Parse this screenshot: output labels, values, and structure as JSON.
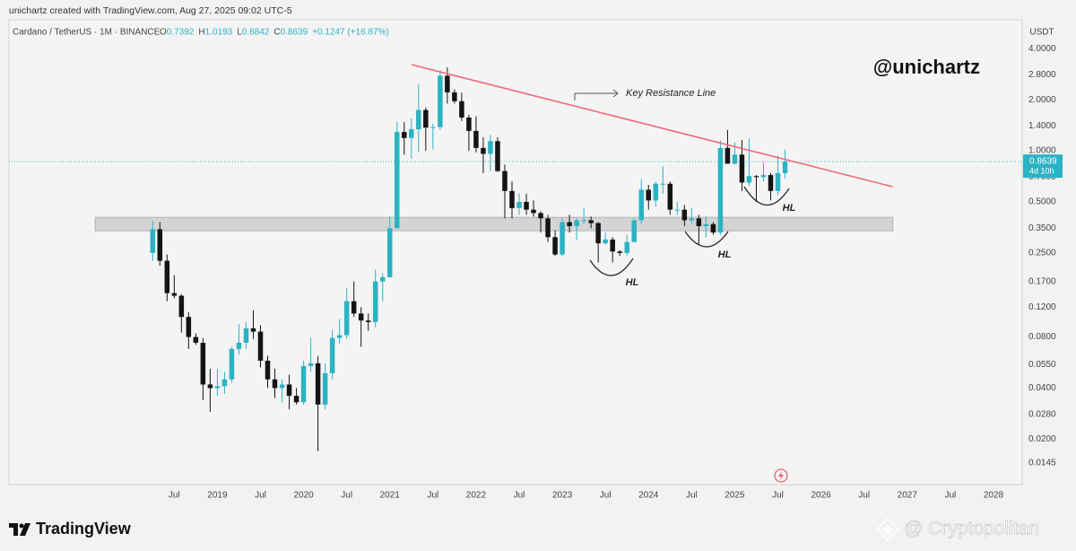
{
  "header": {
    "attribution": "unichartz created with TradingView.com, Aug 27, 2025 09:02 UTC-5"
  },
  "chart_data": {
    "type": "candlestick",
    "symbol": "Cardano / TetherUS · 1M · BINANCE",
    "legend": [
      {
        "key": "O",
        "value": "0.7392"
      },
      {
        "key": "H",
        "value": "1.0193"
      },
      {
        "key": "L",
        "value": "0.6842"
      },
      {
        "key": "C",
        "value": "0.8639"
      },
      {
        "key": "",
        "value": "+0.1247 (+16.87%)"
      }
    ],
    "y_unit": "USDT",
    "author_tag": "@unichartz",
    "up_color": "#2bb3c4",
    "down_color": "#141414",
    "log_scale": true,
    "grid": false,
    "x": [
      "2018-04",
      "2018-05",
      "2018-06",
      "2018-07",
      "2018-08",
      "2018-09",
      "2018-10",
      "2018-11",
      "2018-12",
      "2019-01",
      "2019-02",
      "2019-03",
      "2019-04",
      "2019-05",
      "2019-06",
      "2019-07",
      "2019-08",
      "2019-09",
      "2019-10",
      "2019-11",
      "2019-12",
      "2020-01",
      "2020-02",
      "2020-03",
      "2020-04",
      "2020-05",
      "2020-06",
      "2020-07",
      "2020-08",
      "2020-09",
      "2020-10",
      "2020-11",
      "2020-12",
      "2021-01",
      "2021-02",
      "2021-03",
      "2021-04",
      "2021-05",
      "2021-06",
      "2021-07",
      "2021-08",
      "2021-09",
      "2021-10",
      "2021-11",
      "2021-12",
      "2022-01",
      "2022-02",
      "2022-03",
      "2022-04",
      "2022-05",
      "2022-06",
      "2022-07",
      "2022-08",
      "2022-09",
      "2022-10",
      "2022-11",
      "2022-12",
      "2023-01",
      "2023-02",
      "2023-03",
      "2023-04",
      "2023-05",
      "2023-06",
      "2023-07",
      "2023-08",
      "2023-09",
      "2023-10",
      "2023-11",
      "2023-12",
      "2024-01",
      "2024-02",
      "2024-03",
      "2024-04",
      "2024-05",
      "2024-06",
      "2024-07",
      "2024-08",
      "2024-09",
      "2024-10",
      "2024-11",
      "2024-12",
      "2025-01",
      "2025-02",
      "2025-03",
      "2025-04",
      "2025-05",
      "2025-06",
      "2025-07",
      "2025-08"
    ],
    "open": [
      0.25,
      0.345,
      0.225,
      0.145,
      0.14,
      0.105,
      0.08,
      0.074,
      0.042,
      0.04,
      0.041,
      0.045,
      0.068,
      0.074,
      0.09,
      0.086,
      0.058,
      0.045,
      0.04,
      0.042,
      0.036,
      0.033,
      0.054,
      0.056,
      0.032,
      0.049,
      0.079,
      0.082,
      0.13,
      0.11,
      0.1,
      0.098,
      0.17,
      0.18,
      0.35,
      1.29,
      1.19,
      1.34,
      1.74,
      1.37,
      1.38,
      2.77,
      2.21,
      1.96,
      1.57,
      1.31,
      1.04,
      0.96,
      1.14,
      0.76,
      0.58,
      0.46,
      0.5,
      0.45,
      0.43,
      0.4,
      0.31,
      0.245,
      0.38,
      0.36,
      0.39,
      0.39,
      0.375,
      0.285,
      0.3,
      0.255,
      0.25,
      0.29,
      0.39,
      0.59,
      0.51,
      0.64,
      0.64,
      0.45,
      0.45,
      0.39,
      0.4,
      0.36,
      0.37,
      0.33,
      1.04,
      0.84,
      0.95,
      0.65,
      0.71,
      0.7,
      0.72,
      0.58,
      0.7392
    ],
    "high": [
      0.386,
      0.38,
      0.245,
      0.185,
      0.143,
      0.112,
      0.084,
      0.079,
      0.052,
      0.052,
      0.05,
      0.07,
      0.095,
      0.098,
      0.115,
      0.094,
      0.062,
      0.052,
      0.045,
      0.048,
      0.04,
      0.058,
      0.079,
      0.062,
      0.056,
      0.088,
      0.102,
      0.155,
      0.17,
      0.12,
      0.11,
      0.2,
      0.19,
      0.41,
      1.48,
      1.48,
      1.55,
      2.47,
      1.8,
      1.45,
      2.98,
      3.1,
      2.3,
      2.2,
      1.63,
      1.6,
      1.2,
      1.24,
      1.2,
      0.83,
      0.66,
      0.56,
      0.56,
      0.51,
      0.44,
      0.42,
      0.34,
      0.4,
      0.42,
      0.4,
      0.46,
      0.41,
      0.38,
      0.33,
      0.31,
      0.26,
      0.32,
      0.4,
      0.68,
      0.63,
      0.66,
      0.81,
      0.66,
      0.5,
      0.48,
      0.46,
      0.42,
      0.41,
      0.38,
      1.15,
      1.33,
      1.12,
      1.16,
      1.18,
      0.72,
      0.86,
      0.74,
      0.94,
      1.0193
    ],
    "low": [
      0.225,
      0.21,
      0.13,
      0.135,
      0.085,
      0.068,
      0.072,
      0.034,
      0.029,
      0.036,
      0.037,
      0.043,
      0.063,
      0.068,
      0.078,
      0.053,
      0.04,
      0.035,
      0.033,
      0.03,
      0.032,
      0.032,
      0.05,
      0.017,
      0.03,
      0.045,
      0.073,
      0.078,
      0.105,
      0.07,
      0.087,
      0.091,
      0.13,
      0.18,
      0.35,
      0.95,
      0.9,
      0.98,
      1.0,
      1.02,
      1.33,
      1.9,
      1.9,
      1.5,
      1.0,
      0.98,
      0.74,
      0.76,
      0.75,
      0.4,
      0.4,
      0.42,
      0.42,
      0.41,
      0.33,
      0.29,
      0.24,
      0.24,
      0.33,
      0.3,
      0.37,
      0.35,
      0.22,
      0.28,
      0.22,
      0.24,
      0.24,
      0.29,
      0.37,
      0.45,
      0.47,
      0.56,
      0.42,
      0.42,
      0.36,
      0.37,
      0.28,
      0.31,
      0.32,
      0.32,
      0.84,
      0.83,
      0.58,
      0.62,
      0.5,
      0.66,
      0.51,
      0.55,
      0.6842
    ],
    "close": [
      0.345,
      0.225,
      0.145,
      0.14,
      0.105,
      0.08,
      0.074,
      0.042,
      0.04,
      0.041,
      0.045,
      0.068,
      0.074,
      0.09,
      0.086,
      0.058,
      0.045,
      0.04,
      0.042,
      0.036,
      0.033,
      0.054,
      0.056,
      0.032,
      0.049,
      0.079,
      0.082,
      0.13,
      0.11,
      0.1,
      0.098,
      0.17,
      0.18,
      0.35,
      1.29,
      1.19,
      1.34,
      1.74,
      1.37,
      1.38,
      2.77,
      2.21,
      1.96,
      1.57,
      1.31,
      1.04,
      0.96,
      1.14,
      0.76,
      0.58,
      0.46,
      0.5,
      0.45,
      0.43,
      0.4,
      0.31,
      0.245,
      0.38,
      0.36,
      0.39,
      0.39,
      0.375,
      0.285,
      0.3,
      0.255,
      0.25,
      0.29,
      0.39,
      0.59,
      0.51,
      0.64,
      0.64,
      0.45,
      0.45,
      0.39,
      0.4,
      0.36,
      0.37,
      0.33,
      1.04,
      0.84,
      0.95,
      0.65,
      0.71,
      0.7,
      0.72,
      0.58,
      0.7392,
      0.8639
    ],
    "xlim": [
      "2016-08",
      "2028-05"
    ],
    "ylim": [
      0.0108,
      5.92
    ],
    "xticks": [
      {
        "value": "2018-07",
        "label": "Jul"
      },
      {
        "value": "2019-01",
        "label": "2019"
      },
      {
        "value": "2019-07",
        "label": "Jul"
      },
      {
        "value": "2020-01",
        "label": "2020"
      },
      {
        "value": "2020-07",
        "label": "Jul"
      },
      {
        "value": "2021-01",
        "label": "2021"
      },
      {
        "value": "2021-07",
        "label": "Jul"
      },
      {
        "value": "2022-01",
        "label": "2022"
      },
      {
        "value": "2022-07",
        "label": "Jul"
      },
      {
        "value": "2023-01",
        "label": "2023"
      },
      {
        "value": "2023-07",
        "label": "Jul"
      },
      {
        "value": "2024-01",
        "label": "2024"
      },
      {
        "value": "2024-07",
        "label": "Jul"
      },
      {
        "value": "2025-01",
        "label": "2025"
      },
      {
        "value": "2025-07",
        "label": "Jul"
      },
      {
        "value": "2026-01",
        "label": "2026"
      },
      {
        "value": "2026-07",
        "label": "Jul"
      },
      {
        "value": "2027-01",
        "label": "2027"
      },
      {
        "value": "2027-07",
        "label": "Jul"
      },
      {
        "value": "2028-01",
        "label": "2028"
      }
    ],
    "yticks": [
      {
        "value": 4.0,
        "label": "4.0000"
      },
      {
        "value": 2.8,
        "label": "2.8000"
      },
      {
        "value": 2.0,
        "label": "2.0000"
      },
      {
        "value": 1.4,
        "label": "1.4000"
      },
      {
        "value": 1.0,
        "label": "1.0000"
      },
      {
        "value": 0.7,
        "label": "0.7000"
      },
      {
        "value": 0.5,
        "label": "0.5000"
      },
      {
        "value": 0.35,
        "label": "0.3500"
      },
      {
        "value": 0.25,
        "label": "0.2500"
      },
      {
        "value": 0.17,
        "label": "0.1700"
      },
      {
        "value": 0.12,
        "label": "0.1200"
      },
      {
        "value": 0.08,
        "label": "0.0800"
      },
      {
        "value": 0.055,
        "label": "0.0550"
      },
      {
        "value": 0.04,
        "label": "0.0400"
      },
      {
        "value": 0.028,
        "label": "0.0280"
      },
      {
        "value": 0.02,
        "label": "0.0200"
      },
      {
        "value": 0.0145,
        "label": "0.0145"
      }
    ],
    "last_price": 0.8639,
    "countdown": "4d 10h",
    "resistance_line": {
      "x": [
        "2021-04",
        "2026-11"
      ],
      "y": [
        3.22,
        0.614
      ],
      "color": "#ef6b7b"
    },
    "support_zone": {
      "x": [
        "2017-08",
        "2026-11"
      ],
      "y": [
        0.338,
        0.406
      ],
      "color": "#c9c9c9"
    },
    "annotations": [
      "Key Resistance Line",
      "HL",
      "HL",
      "HL"
    ]
  },
  "footer": {
    "brand": "TradingView",
    "watermark": "@ Cryptopolitan"
  }
}
